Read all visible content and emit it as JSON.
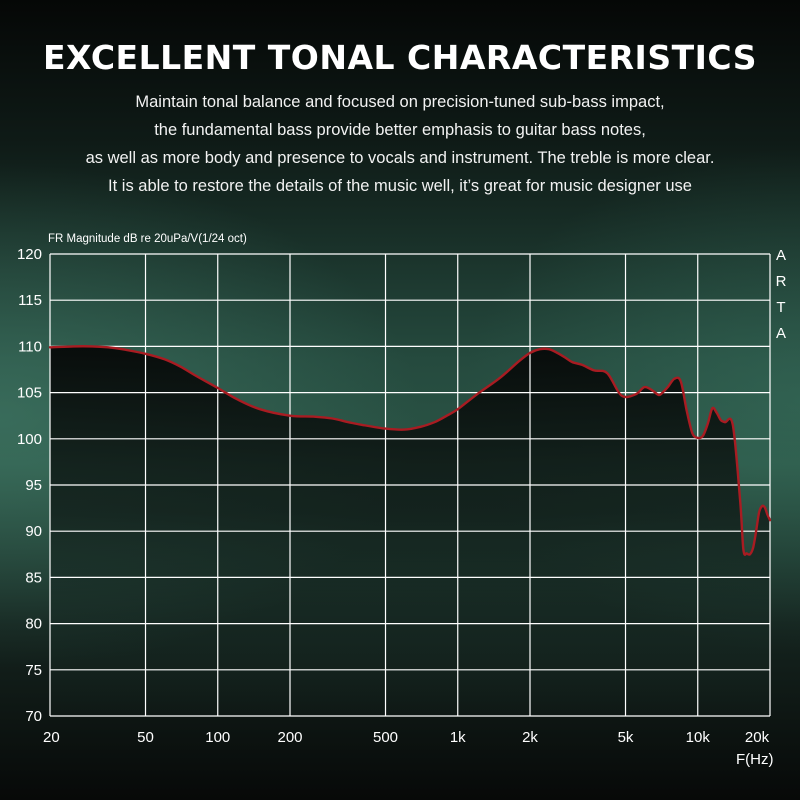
{
  "header": {
    "title": "EXCELLENT TONAL CHARACTERISTICS",
    "description_lines": [
      "Maintain tonal balance and focused on precision-tuned sub-bass impact,",
      "the fundamental bass provide better emphasis to guitar bass notes,",
      "as well as more body and presence to vocals and instrument. The treble is more clear.",
      "It is able to restore the details of the music well, it’s great for music designer use"
    ]
  },
  "chart_data": {
    "type": "line",
    "title": "",
    "ylabel": "FR Magnitude dB re 20uPa/V(1/24 oct)",
    "xlabel": "F(Hz)",
    "brand": "ARTA",
    "x_scale": "log",
    "xlim": [
      20,
      20000
    ],
    "ylim": [
      70,
      120
    ],
    "grid": true,
    "x_ticks": [
      {
        "value": 20,
        "label": "20"
      },
      {
        "value": 50,
        "label": "50"
      },
      {
        "value": 100,
        "label": "100"
      },
      {
        "value": 200,
        "label": "200"
      },
      {
        "value": 500,
        "label": "500"
      },
      {
        "value": 1000,
        "label": "1k"
      },
      {
        "value": 2000,
        "label": "2k"
      },
      {
        "value": 5000,
        "label": "5k"
      },
      {
        "value": 10000,
        "label": "10k"
      },
      {
        "value": 20000,
        "label": "20k"
      }
    ],
    "y_ticks": [
      70,
      75,
      80,
      85,
      90,
      95,
      100,
      105,
      110,
      115,
      120
    ],
    "colors": {
      "line": "#a81c22",
      "grid": "#ffffff",
      "fill_top": "#0a0e0c"
    },
    "series": [
      {
        "name": "",
        "x": [
          20,
          25,
          30,
          35,
          40,
          50,
          60,
          70,
          80,
          100,
          120,
          150,
          200,
          250,
          300,
          350,
          400,
          500,
          600,
          700,
          800,
          900,
          1000,
          1200,
          1500,
          1800,
          2000,
          2200,
          2400,
          2600,
          2800,
          3000,
          3300,
          3700,
          4200,
          4800,
          5500,
          6000,
          6500,
          6800,
          7000,
          7500,
          8000,
          8500,
          9000,
          9500,
          10000,
          10500,
          11000,
          11500,
          12000,
          12500,
          13000,
          14000,
          15000,
          15500,
          16000,
          16500,
          17000,
          17500,
          18000,
          18500,
          19000,
          19500,
          20000
        ],
        "y": [
          109.9,
          110.0,
          110.0,
          109.9,
          109.7,
          109.2,
          108.6,
          107.8,
          106.9,
          105.5,
          104.3,
          103.2,
          102.5,
          102.4,
          102.2,
          101.8,
          101.5,
          101.1,
          101.0,
          101.3,
          101.8,
          102.5,
          103.2,
          104.8,
          106.6,
          108.4,
          109.3,
          109.7,
          109.7,
          109.3,
          108.8,
          108.3,
          108.0,
          107.4,
          107.1,
          104.7,
          104.8,
          105.6,
          105.2,
          104.8,
          104.8,
          105.6,
          106.5,
          106.2,
          103.0,
          100.6,
          100.1,
          100.3,
          101.6,
          103.3,
          102.8,
          102.0,
          101.8,
          101.5,
          93.5,
          88.0,
          87.6,
          87.5,
          88.2,
          90.0,
          92.0,
          92.7,
          92.6,
          91.8,
          91.2
        ]
      }
    ]
  }
}
